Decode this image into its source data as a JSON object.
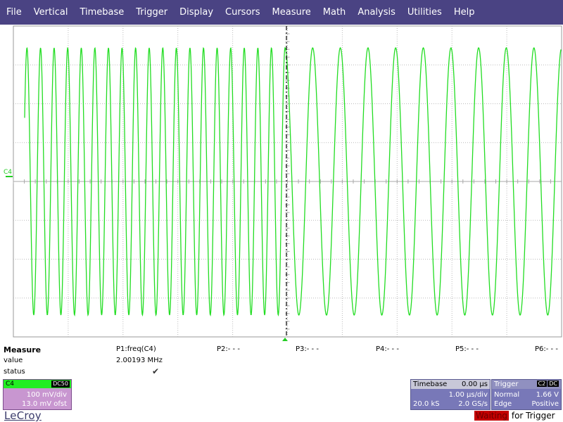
{
  "menu": [
    "File",
    "Vertical",
    "Timebase",
    "Trigger",
    "Display",
    "Cursors",
    "Measure",
    "Math",
    "Analysis",
    "Utilities",
    "Help"
  ],
  "colors": {
    "menu_bg": "#4a4383",
    "trace": "#22dd22",
    "grid": "#bbbbbb",
    "channel_box": "#c896d0",
    "timebase_box": "#7878b8",
    "waiting_bg": "#c40000"
  },
  "channel_tag": "C4",
  "measure": {
    "title": "Measure",
    "value_label": "value",
    "status_label": "status",
    "params": [
      "P1:freq(C4)",
      "P2:- - -",
      "P3:- - -",
      "P4:- - -",
      "P5:- - -",
      "P6:- - -"
    ],
    "p1_value": "2.00193 MHz",
    "p1_status": "✔"
  },
  "channel": {
    "name": "C4",
    "coupling": "DC50",
    "vdiv": "100 mV/div",
    "offset": "13.0 mV ofst"
  },
  "timebase": {
    "title": "Timebase",
    "delay": "0.00 µs",
    "div": "1.00 µs/div",
    "samples": "20.0 kS",
    "rate": "2.0 GS/s"
  },
  "trigger": {
    "title": "Trigger",
    "source": "C2",
    "coupling": "DC",
    "mode": "Normal",
    "level": "1.66 V",
    "type": "Edge",
    "slope": "Positive"
  },
  "logo": "LeCroy",
  "status": {
    "state": "Waiting",
    "suffix": " for Trigger"
  },
  "waveform": {
    "left_cycles": 20,
    "right_cycles": 10
  }
}
